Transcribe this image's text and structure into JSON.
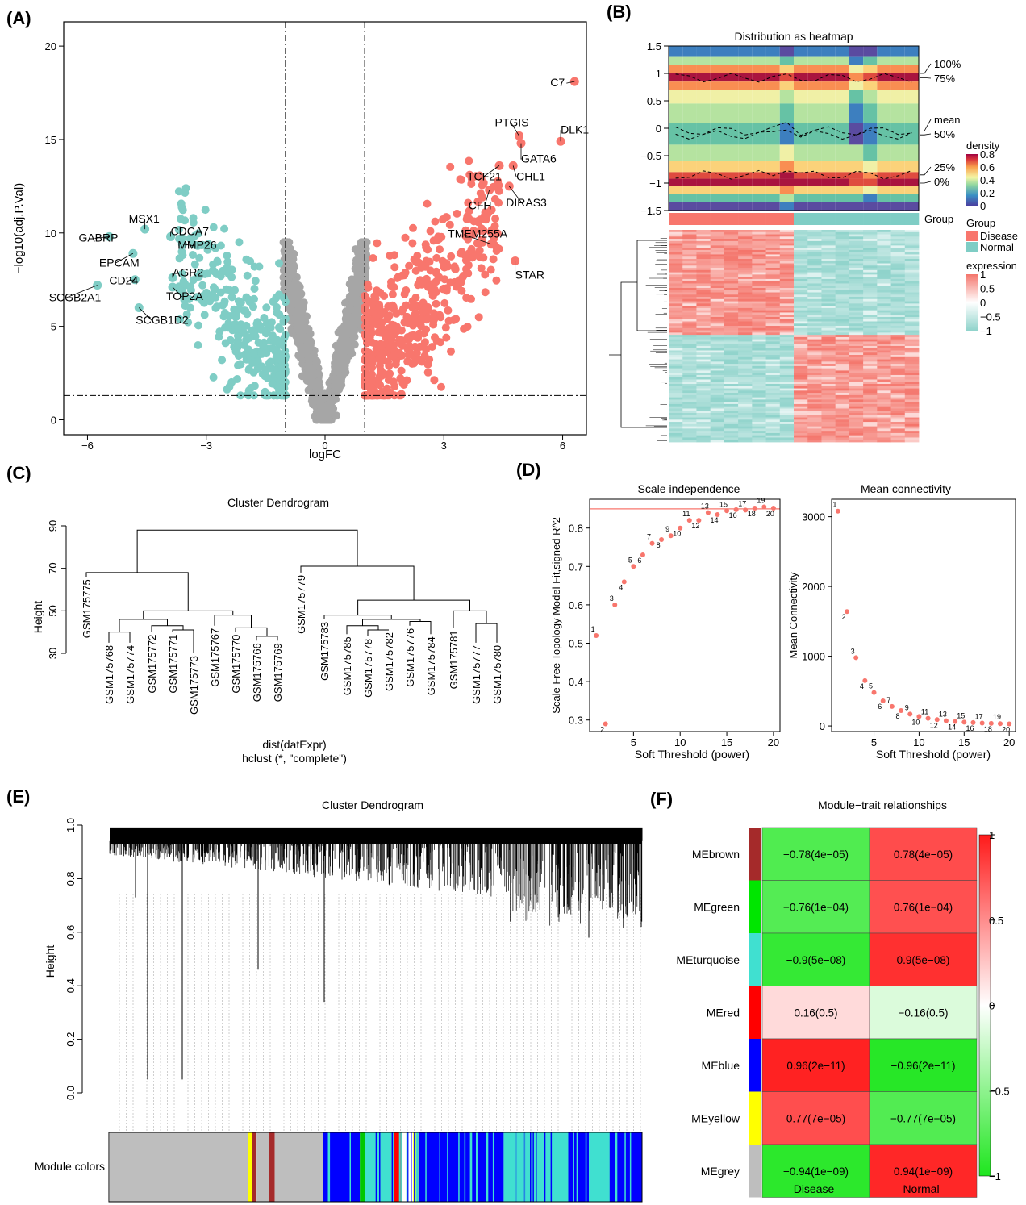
{
  "colors": {
    "disease": "#f8766d",
    "normal": "#7fcdc5",
    "grey": "#a6a6a6",
    "marker": "#f8766d",
    "threshold": "#f8766d",
    "hm_pos": "#f4756b",
    "hm_neg": "#8fd3cb",
    "mod_pos": "#ff1a1a",
    "mod_neg": "#1ee61e",
    "mod_mid": "#fff0f0"
  },
  "panels": {
    "a": "(A)",
    "b": "(B)",
    "c": "(C)",
    "d": "(D)",
    "e": "(E)",
    "f": "(F)"
  },
  "chart_data": [
    {
      "id": "volcano",
      "type": "scatter",
      "title": "",
      "xlabel": "logFC",
      "ylabel": "−log10(adj.P.Val)",
      "xlim": [
        -6.6,
        6.6
      ],
      "ylim": [
        -0.8,
        21.3
      ],
      "xticks": [
        -6,
        -3,
        0,
        3,
        6
      ],
      "yticks": [
        0,
        5,
        10,
        15,
        20
      ],
      "xtick_labels": [
        "−6",
        "−3",
        "0",
        "3",
        "6"
      ],
      "ytick_labels": [
        "0",
        "5",
        "10",
        "15",
        "20"
      ],
      "thresholds": {
        "logFC": [
          -1,
          1
        ],
        "neg_log10_p": 1.3
      },
      "labeled_points": [
        {
          "label": "C7",
          "x": 6.3,
          "y": 18.1,
          "group": "up"
        },
        {
          "label": "DLK1",
          "x": 5.95,
          "y": 14.9,
          "group": "up"
        },
        {
          "label": "PTGIS",
          "x": 4.9,
          "y": 15.2,
          "group": "up"
        },
        {
          "label": "GATA6",
          "x": 4.95,
          "y": 14.8,
          "group": "up"
        },
        {
          "label": "TCF21",
          "x": 4.4,
          "y": 13.6,
          "group": "up"
        },
        {
          "label": "CHL1",
          "x": 4.75,
          "y": 13.6,
          "group": "up"
        },
        {
          "label": "CFH",
          "x": 4.15,
          "y": 12.3,
          "group": "up"
        },
        {
          "label": "DIRAS3",
          "x": 4.65,
          "y": 12.5,
          "group": "up"
        },
        {
          "label": "TMEM255A",
          "x": 4.2,
          "y": 9.4,
          "group": "up"
        },
        {
          "label": "STAR",
          "x": 4.8,
          "y": 8.5,
          "group": "up"
        },
        {
          "label": "MSX1",
          "x": -4.55,
          "y": 10.2,
          "group": "down"
        },
        {
          "label": "CDCA7",
          "x": -3.9,
          "y": 9.8,
          "group": "down"
        },
        {
          "label": "GABRP",
          "x": -5.45,
          "y": 9.8,
          "group": "down"
        },
        {
          "label": "MMP26",
          "x": -3.6,
          "y": 9.4,
          "group": "down"
        },
        {
          "label": "EPCAM",
          "x": -4.85,
          "y": 8.9,
          "group": "down"
        },
        {
          "label": "AGR2",
          "x": -3.85,
          "y": 7.6,
          "group": "down"
        },
        {
          "label": "CD24",
          "x": -4.8,
          "y": 7.5,
          "group": "down"
        },
        {
          "label": "TOP2A",
          "x": -3.85,
          "y": 7.1,
          "group": "down"
        },
        {
          "label": "SCGB2A1",
          "x": -5.75,
          "y": 7.2,
          "group": "down"
        },
        {
          "label": "SCGB1D2",
          "x": -4.7,
          "y": 6.0,
          "group": "down"
        }
      ]
    },
    {
      "id": "distribution",
      "type": "heatmap",
      "title": "Distribution as heatmap",
      "ylim": [
        -1.5,
        1.5
      ],
      "yticks": [
        -1.5,
        -1,
        -0.5,
        0,
        0.5,
        1,
        1.5
      ],
      "ytick_labels": [
        "−1.5",
        "−1",
        "−0.5",
        "0",
        "0.5",
        "1",
        "1.5"
      ],
      "quantile_labels": [
        "100%",
        "75%",
        "mean",
        "50%",
        "25%",
        "0%"
      ],
      "quantile_values": [
        1,
        0.92,
        -0.05,
        -0.12,
        -0.85,
        -1.0
      ],
      "samples": 18,
      "colorbar": {
        "title": "density",
        "ticks": [
          "0.8",
          "0.6",
          "0.4",
          "0.2",
          "0"
        ],
        "values": [
          0.8,
          0.6,
          0.4,
          0.2,
          0
        ]
      },
      "group_label": "Group",
      "group_legend_title": "Group",
      "groups": [
        "Disease",
        "Normal"
      ],
      "group_counts": [
        9,
        9
      ],
      "expression_legend": {
        "title": "expression",
        "ticks": [
          "1",
          "0.5",
          "0",
          "−0.5",
          "−1"
        ],
        "values": [
          1,
          0.5,
          0,
          -0.5,
          -1
        ]
      }
    },
    {
      "id": "sample_dendrogram",
      "type": "dendrogram",
      "title": "Cluster Dendrogram",
      "ylabel": "Height",
      "xlabel": "dist(datExpr)",
      "subtitle": "hclust (*, \"complete\")",
      "ylim": [
        30,
        90
      ],
      "yticks": [
        30,
        50,
        70,
        90
      ],
      "ytick_labels": [
        "30",
        "50",
        "70",
        "90"
      ],
      "leaves": [
        "GSM175775",
        "GSM175768",
        "GSM175774",
        "GSM175772",
        "GSM175771",
        "GSM175773",
        "GSM175767",
        "GSM175770",
        "GSM175766",
        "GSM175769",
        "GSM175779",
        "GSM175783",
        "GSM175785",
        "GSM175778",
        "GSM175782",
        "GSM175776",
        "GSM175784",
        "GSM175781",
        "GSM175777",
        "GSM175780"
      ]
    },
    {
      "id": "scale_independence",
      "type": "scatter",
      "title": "Scale independence",
      "xlabel": "Soft Threshold (power)",
      "ylabel": "Scale Free Topology Model Fit,signed R^2",
      "xlim": [
        0.3,
        20.7
      ],
      "ylim": [
        0.27,
        0.875
      ],
      "xticks": [
        5,
        10,
        15,
        20
      ],
      "yticks": [
        0.3,
        0.4,
        0.5,
        0.6,
        0.7,
        0.8
      ],
      "xtick_labels": [
        "5",
        "10",
        "15",
        "20"
      ],
      "ytick_labels": [
        "0.3",
        "0.4",
        "0.5",
        "0.6",
        "0.7",
        "0.8"
      ],
      "cutoff": 0.85,
      "x": [
        1,
        2,
        3,
        4,
        5,
        6,
        7,
        8,
        9,
        10,
        11,
        12,
        13,
        14,
        15,
        16,
        17,
        18,
        19,
        20
      ],
      "y": [
        0.52,
        0.29,
        0.6,
        0.66,
        0.7,
        0.73,
        0.76,
        0.77,
        0.78,
        0.8,
        0.82,
        0.82,
        0.84,
        0.835,
        0.845,
        0.848,
        0.847,
        0.852,
        0.855,
        0.852
      ]
    },
    {
      "id": "mean_connectivity",
      "type": "scatter",
      "title": "Mean connectivity",
      "xlabel": "Soft Threshold (power)",
      "ylabel": "Mean Connectivity",
      "xlim": [
        0.3,
        20.7
      ],
      "ylim": [
        -80,
        3250
      ],
      "xticks": [
        5,
        10,
        15,
        20
      ],
      "yticks": [
        0,
        1000,
        2000,
        3000
      ],
      "xtick_labels": [
        "5",
        "10",
        "15",
        "20"
      ],
      "ytick_labels": [
        "0",
        "1000",
        "2000",
        "3000"
      ],
      "x": [
        1,
        2,
        3,
        4,
        5,
        6,
        7,
        8,
        9,
        10,
        11,
        12,
        13,
        14,
        15,
        16,
        17,
        18,
        19,
        20
      ],
      "y": [
        3080,
        1640,
        980,
        650,
        480,
        360,
        280,
        220,
        170,
        135,
        110,
        90,
        75,
        63,
        55,
        48,
        42,
        37,
        33,
        30
      ]
    },
    {
      "id": "gene_dendrogram",
      "type": "dendrogram",
      "title": "Cluster Dendrogram",
      "ylabel": "Height",
      "ylim": [
        0,
        1
      ],
      "yticks": [
        0,
        0.2,
        0.4,
        0.6,
        0.8,
        1
      ],
      "ytick_labels": [
        "0.0",
        "0.2",
        "0.4",
        "0.6",
        "0.8",
        "1.0"
      ],
      "module_label": "Module colors",
      "module_segments": [
        {
          "module": "grey",
          "color": "#bebebe",
          "from": 0,
          "to": 0.26
        },
        {
          "module": "yellow",
          "color": "#ffff00",
          "from": 0.26,
          "to": 0.267
        },
        {
          "module": "brown",
          "color": "#a52a2a",
          "from": 0.267,
          "to": 0.276
        },
        {
          "module": "grey",
          "color": "#bebebe",
          "from": 0.276,
          "to": 0.3
        },
        {
          "module": "brown",
          "color": "#a52a2a",
          "from": 0.3,
          "to": 0.31
        },
        {
          "module": "grey",
          "color": "#bebebe",
          "from": 0.31,
          "to": 0.4
        },
        {
          "module": "blue",
          "color": "#0000ff",
          "from": 0.4,
          "to": 0.47
        },
        {
          "module": "green",
          "color": "#00c800",
          "from": 0.47,
          "to": 0.48
        },
        {
          "module": "turquoise",
          "color": "#40e0d0",
          "from": 0.48,
          "to": 0.53
        },
        {
          "module": "red",
          "color": "#ff0000",
          "from": 0.53,
          "to": 0.55
        },
        {
          "module": "yellow",
          "color": "#ffff00",
          "from": 0.57,
          "to": 0.58
        },
        {
          "module": "blue",
          "color": "#0000ff",
          "from": 0.58,
          "to": 0.74
        },
        {
          "module": "turquoise",
          "color": "#40e0d0",
          "from": 0.74,
          "to": 0.86
        },
        {
          "module": "blue",
          "color": "#0000ff",
          "from": 0.86,
          "to": 0.9
        },
        {
          "module": "turquoise",
          "color": "#40e0d0",
          "from": 0.9,
          "to": 0.94
        },
        {
          "module": "blue",
          "color": "#0000ff",
          "from": 0.94,
          "to": 1
        }
      ]
    },
    {
      "id": "module_trait",
      "type": "heatmap",
      "title": "Module−trait relationships",
      "columns": [
        "Disease",
        "Normal"
      ],
      "colorbar": {
        "ticks": [
          "1",
          "0.5",
          "0",
          "−0.5",
          "−1"
        ],
        "values": [
          1,
          0.5,
          0,
          -0.5,
          -1
        ]
      },
      "rows": [
        {
          "module": "MEbrown",
          "color": "#a52a2a",
          "values": [
            -0.78,
            0.78
          ],
          "labels": [
            "−0.78(4e−05)",
            "0.78(4e−05)"
          ]
        },
        {
          "module": "MEgreen",
          "color": "#00e600",
          "values": [
            -0.76,
            0.76
          ],
          "labels": [
            "−0.76(1e−04)",
            "0.76(1e−04)"
          ]
        },
        {
          "module": "MEturquoise",
          "color": "#40e0d0",
          "values": [
            -0.9,
            0.9
          ],
          "labels": [
            "−0.9(5e−08)",
            "0.9(5e−08)"
          ]
        },
        {
          "module": "MEred",
          "color": "#ff0000",
          "values": [
            0.16,
            -0.16
          ],
          "labels": [
            "0.16(0.5)",
            "−0.16(0.5)"
          ]
        },
        {
          "module": "MEblue",
          "color": "#0000ff",
          "values": [
            0.96,
            -0.96
          ],
          "labels": [
            "0.96(2e−11)",
            "−0.96(2e−11)"
          ]
        },
        {
          "module": "MEyellow",
          "color": "#ffff00",
          "values": [
            0.77,
            -0.77
          ],
          "labels": [
            "0.77(7e−05)",
            "−0.77(7e−05)"
          ]
        },
        {
          "module": "MEgrey",
          "color": "#bebebe",
          "values": [
            -0.94,
            0.94
          ],
          "labels": [
            "−0.94(1e−09)",
            "0.94(1e−09)"
          ]
        }
      ]
    }
  ]
}
